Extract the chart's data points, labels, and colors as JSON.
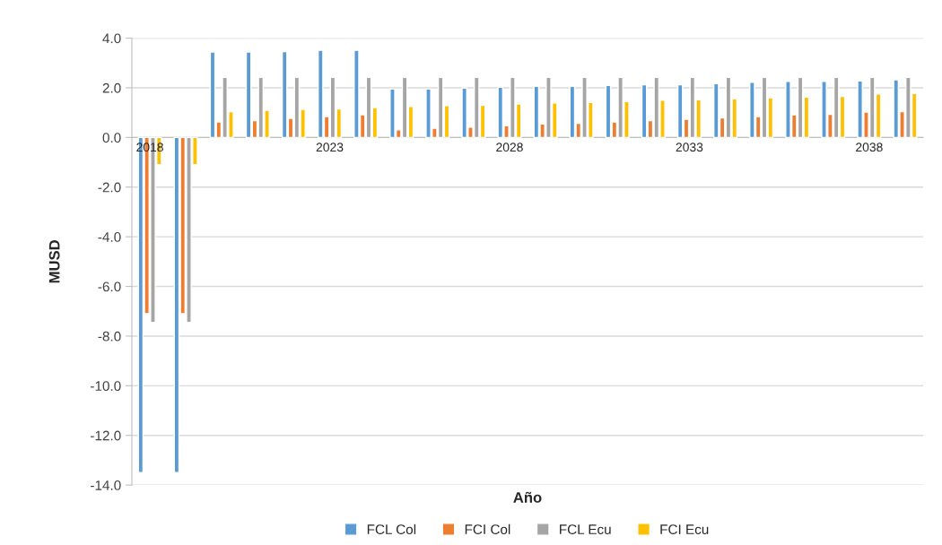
{
  "chart_data": {
    "type": "bar",
    "xlabel": "Año",
    "ylabel": "MUSD",
    "categories": [
      "2018",
      null,
      null,
      null,
      null,
      "2023",
      null,
      null,
      null,
      null,
      "2028",
      null,
      null,
      null,
      null,
      "2033",
      null,
      null,
      null,
      null,
      "2038",
      null
    ],
    "series": [
      {
        "name": "FCL Col",
        "color": "#5b9bd5",
        "values": [
          -13.5,
          -13.5,
          3.44,
          3.44,
          3.46,
          3.51,
          3.51,
          1.95,
          1.95,
          1.99,
          2.02,
          2.06,
          2.06,
          2.1,
          2.12,
          2.12,
          2.17,
          2.22,
          2.26,
          2.26,
          2.28,
          2.32
        ]
      },
      {
        "name": "FCI Col",
        "color": "#ed7d31",
        "values": [
          -7.1,
          -7.1,
          0.62,
          0.68,
          0.77,
          0.84,
          0.91,
          0.31,
          0.37,
          0.42,
          0.47,
          0.54,
          0.57,
          0.62,
          0.68,
          0.73,
          0.79,
          0.84,
          0.91,
          0.93,
          1.02,
          1.04
        ]
      },
      {
        "name": "FCL Ecu",
        "color": "#a5a5a5",
        "values": [
          -7.45,
          -7.45,
          2.42,
          2.42,
          2.42,
          2.42,
          2.42,
          2.42,
          2.42,
          2.42,
          2.42,
          2.42,
          2.42,
          2.42,
          2.42,
          2.42,
          2.42,
          2.42,
          2.42,
          2.42,
          2.42,
          2.42
        ]
      },
      {
        "name": "FCI Ecu",
        "color": "#ffc000",
        "values": [
          -1.1,
          -1.1,
          1.04,
          1.09,
          1.13,
          1.15,
          1.2,
          1.25,
          1.28,
          1.29,
          1.35,
          1.39,
          1.41,
          1.45,
          1.5,
          1.52,
          1.56,
          1.6,
          1.63,
          1.65,
          1.75,
          1.77
        ]
      }
    ],
    "ylim": [
      -14,
      4
    ],
    "yticks": [
      {
        "value": -14,
        "label": "-14.0"
      },
      {
        "value": -12,
        "label": "-12.0"
      },
      {
        "value": -10,
        "label": "-10.0"
      },
      {
        "value": -8,
        "label": "-8.0"
      },
      {
        "value": -6,
        "label": "-6.0"
      },
      {
        "value": -4,
        "label": "-4.0"
      },
      {
        "value": -2,
        "label": "-2.0"
      },
      {
        "value": 0,
        "label": "0.0"
      },
      {
        "value": 2,
        "label": "2.0"
      },
      {
        "value": 4,
        "label": "4.0"
      }
    ],
    "grid": "y",
    "legend": "bottom"
  }
}
